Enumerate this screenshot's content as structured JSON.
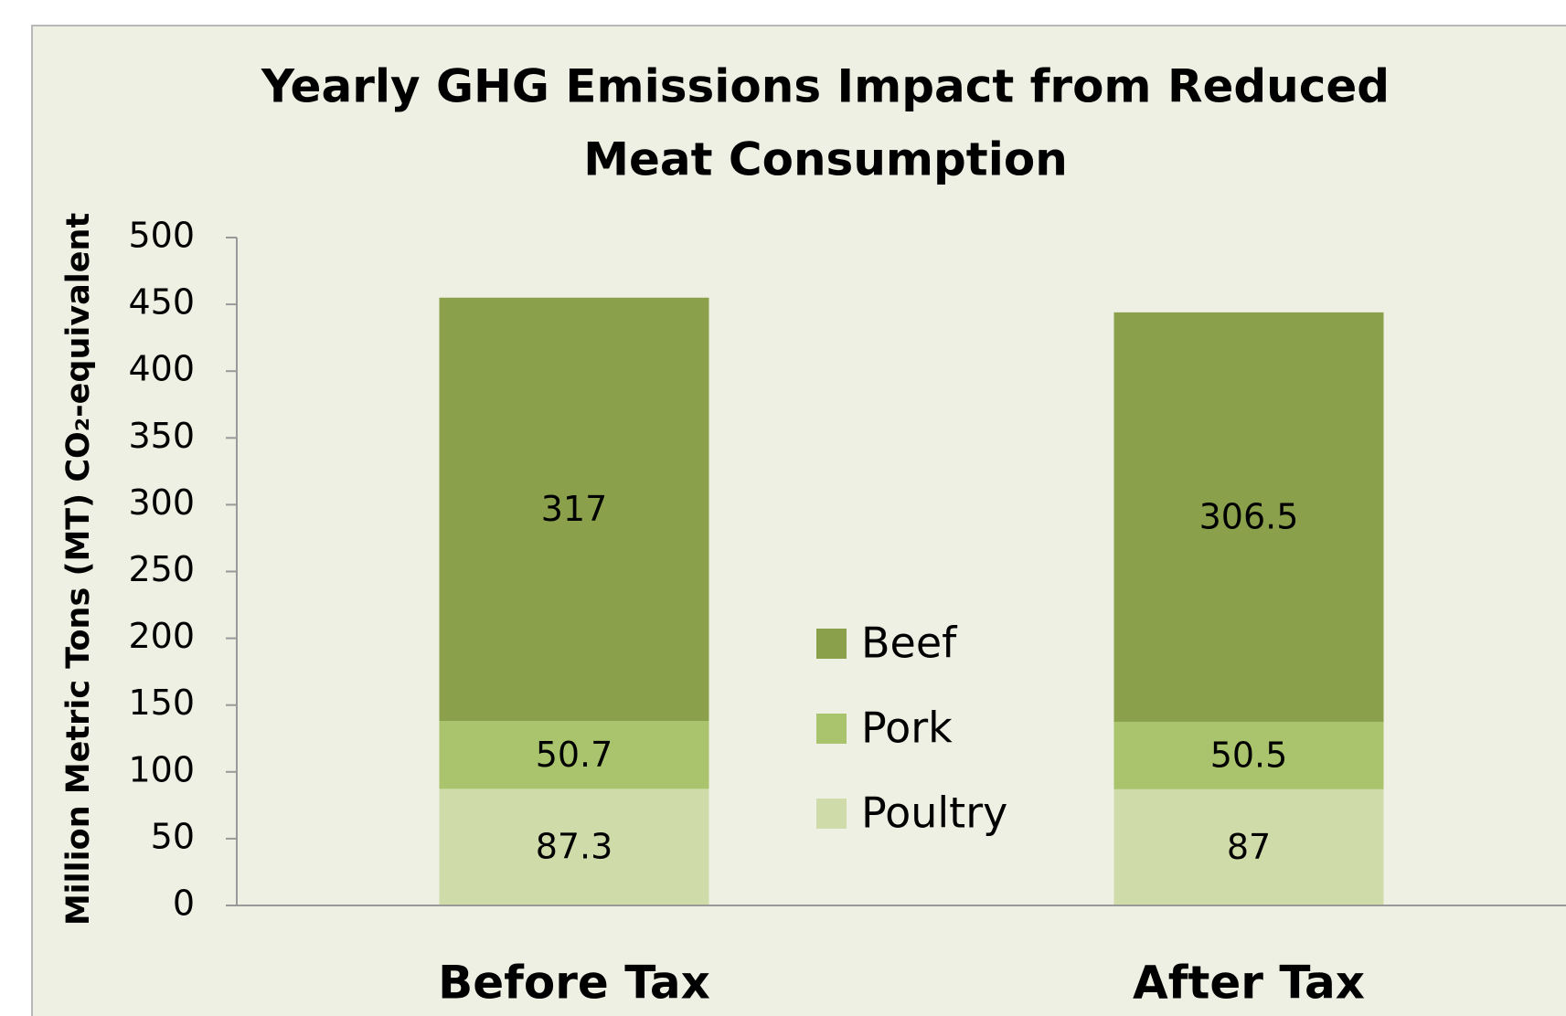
{
  "chart_data": {
    "type": "stacked_bar",
    "title": "Yearly GHG Emissions Impact from Reduced Meat Consumption",
    "y_label": "Million Metric Tons (MT) CO₂-equivalent",
    "categories": [
      "Before Tax",
      "After Tax"
    ],
    "series": [
      {
        "name": "Poultry",
        "color": "#cfdcaa",
        "values": [
          87.3,
          87
        ]
      },
      {
        "name": "Pork",
        "color": "#a9c46c",
        "values": [
          50.7,
          50.5
        ]
      },
      {
        "name": "Beef",
        "color": "#8aa04b",
        "values": [
          317,
          306.5
        ]
      }
    ],
    "ylim": [
      0,
      500
    ],
    "yticks": [
      0,
      50,
      100,
      150,
      200,
      250,
      300,
      350,
      400,
      450,
      500
    ],
    "legend": "center"
  }
}
